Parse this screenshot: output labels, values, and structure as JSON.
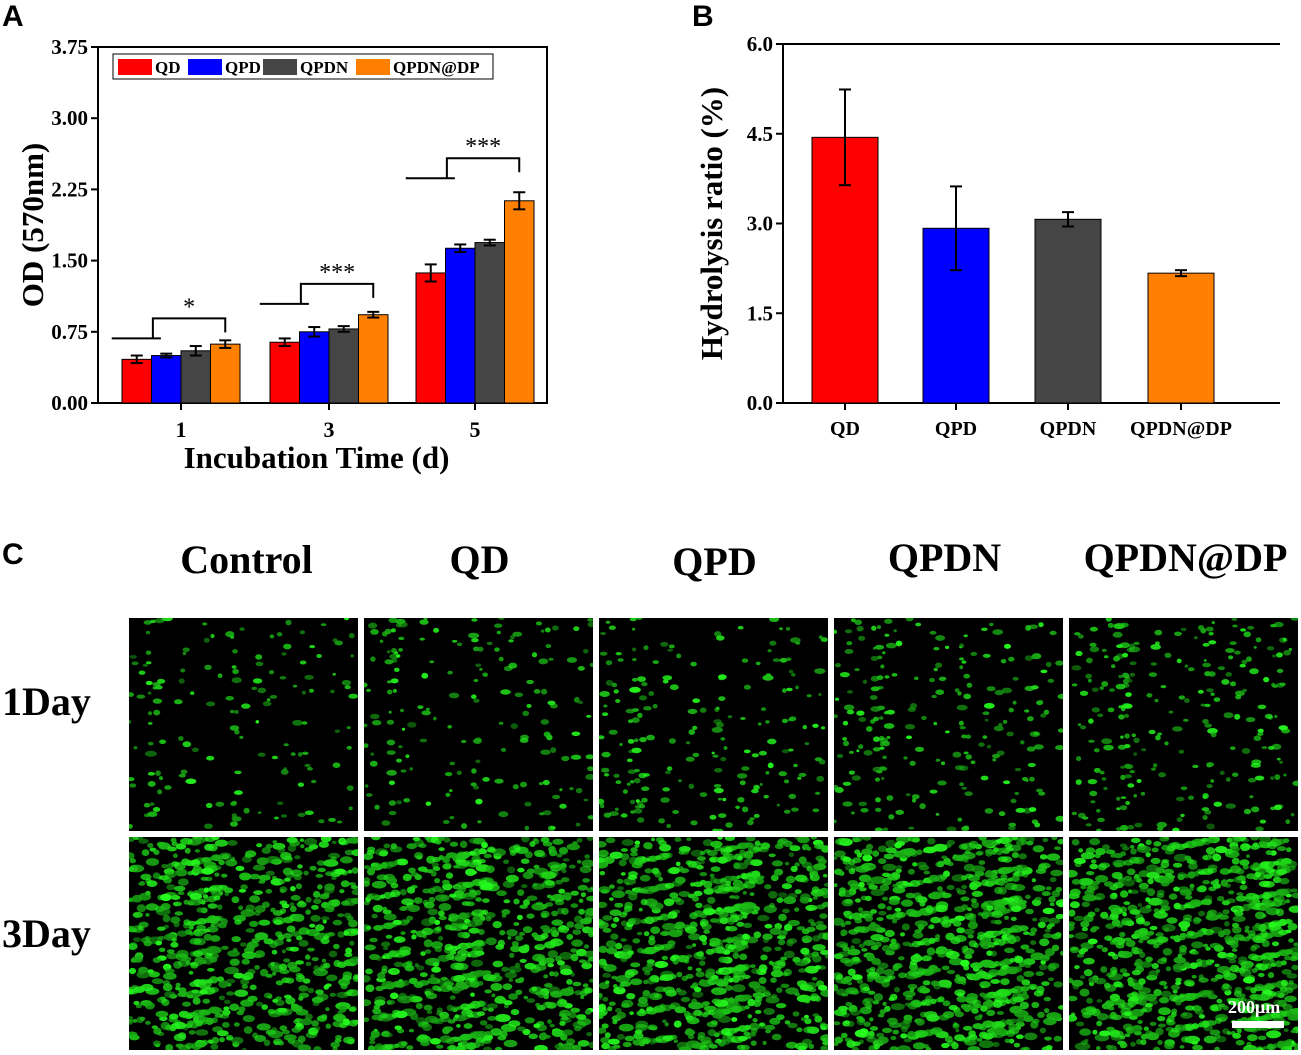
{
  "panels": {
    "a_label": "A",
    "b_label": "B",
    "c_label": "C"
  },
  "chart_data": [
    {
      "type": "bar",
      "title": "",
      "xlabel": "Incubation Time (d)",
      "ylabel": "OD (570nm)",
      "categories": [
        "1",
        "3",
        "5"
      ],
      "ylim": [
        0,
        3.75
      ],
      "yticks": [
        "0.00",
        "0.75",
        "1.50",
        "2.25",
        "3.00",
        "3.75"
      ],
      "legend_position": "top-left",
      "series": [
        {
          "name": "QD",
          "color": "#ff0000",
          "values": [
            0.46,
            0.64,
            1.37
          ],
          "errors": [
            0.04,
            0.04,
            0.09
          ]
        },
        {
          "name": "QPD",
          "color": "#0000ff",
          "values": [
            0.5,
            0.75,
            1.63
          ],
          "errors": [
            0.02,
            0.05,
            0.04
          ]
        },
        {
          "name": "QPDN",
          "color": "#454545",
          "values": [
            0.55,
            0.78,
            1.69
          ],
          "errors": [
            0.05,
            0.03,
            0.03
          ]
        },
        {
          "name": "QPDN@DP",
          "color": "#ff8000",
          "values": [
            0.62,
            0.93,
            2.13
          ],
          "errors": [
            0.04,
            0.03,
            0.09
          ]
        }
      ],
      "annotations": [
        {
          "label": "*",
          "group": "1"
        },
        {
          "label": "***",
          "group": "3"
        },
        {
          "label": "***",
          "group": "5"
        }
      ]
    },
    {
      "type": "bar",
      "title": "",
      "xlabel": "",
      "ylabel": "Hydrolysis ratio (%)",
      "categories": [
        "QD",
        "QPD",
        "QPDN",
        "QPDN@DP"
      ],
      "colors": [
        "#ff0000",
        "#0000ff",
        "#454545",
        "#ff8000"
      ],
      "values": [
        4.44,
        2.92,
        3.07,
        2.17
      ],
      "errors": [
        0.8,
        0.7,
        0.12,
        0.05
      ],
      "ylim": [
        0,
        6.0
      ],
      "yticks": [
        "0.0",
        "1.5",
        "3.0",
        "4.5",
        "6.0"
      ]
    }
  ],
  "micrographs": {
    "columns": [
      "Control",
      "QD",
      "QPD",
      "QPDN",
      "QPDN@DP"
    ],
    "rows": [
      "1Day",
      "3Day"
    ],
    "scale_bar": "200μm"
  }
}
